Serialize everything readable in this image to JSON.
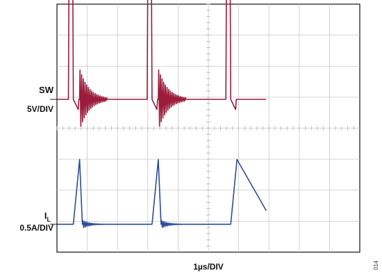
{
  "chart_data": {
    "type": "line",
    "title": "",
    "xlabel": "1µs/DIV",
    "grid": true,
    "x_divisions": 10,
    "y_divisions": 8,
    "figure_id": "014",
    "x_units": "µs",
    "series": [
      {
        "name": "SW",
        "scale_label": "5V/DIV",
        "color": "#9b1b3b",
        "x": [
          0,
          0.16,
          0.17,
          0.22,
          0.23,
          0.3,
          0.31,
          1.29,
          1.3,
          1.35,
          1.36,
          1.43,
          1.44,
          2.42,
          2.43,
          2.48,
          2.49,
          2.56,
          2.57,
          3.0
        ],
        "y_div": [
          0,
          0,
          4.2,
          4.2,
          0,
          -0.3,
          0,
          0,
          4.2,
          4.2,
          0,
          -0.3,
          0,
          0,
          4.2,
          4.2,
          0,
          -0.3,
          0,
          0
        ],
        "ringing": [
          {
            "x_start": 0.32,
            "x_end": 0.72,
            "amplitude_div": 0.9,
            "period": 0.024
          },
          {
            "x_start": 1.45,
            "x_end": 1.85,
            "amplitude_div": 0.9,
            "period": 0.024
          }
        ]
      },
      {
        "name": "IL",
        "name_main": "I",
        "name_sub": "L",
        "scale_label": "0.5A/DIV",
        "color": "#2e4a9a",
        "x": [
          0,
          0.16,
          0.23,
          0.32,
          0.36,
          1.29,
          1.36,
          1.45,
          1.49,
          2.42,
          2.49,
          2.58,
          3.0
        ],
        "y_div": [
          0,
          0,
          0,
          1.9,
          0,
          0,
          0,
          1.9,
          0,
          0,
          0,
          1.9,
          0.4
        ],
        "ringing": [
          {
            "x_start": 0.36,
            "x_end": 0.65,
            "amplitude_div": 0.12,
            "period": 0.024
          },
          {
            "x_start": 1.49,
            "x_end": 1.78,
            "amplitude_div": 0.12,
            "period": 0.024
          }
        ]
      }
    ]
  }
}
